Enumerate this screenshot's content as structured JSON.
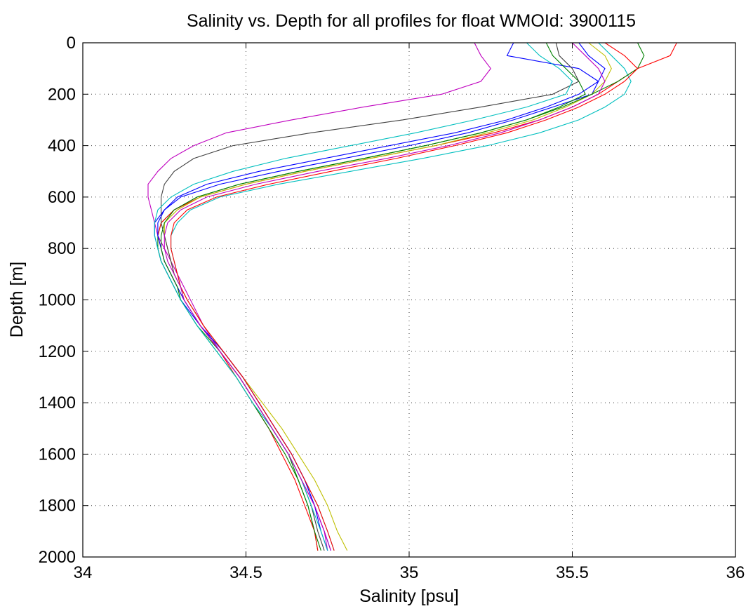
{
  "chart_data": {
    "type": "line",
    "title": "Salinity vs. Depth for all profiles for float WMOId: 3900115",
    "xlabel": "Salinity [psu]",
    "ylabel": "Depth [m]",
    "xlim": [
      34,
      36
    ],
    "ylim": [
      0,
      2000
    ],
    "y_reversed": true,
    "grid": true,
    "x_ticks": [
      "34",
      "34.5",
      "35",
      "35.5",
      "36"
    ],
    "y_ticks": [
      "0",
      "200",
      "400",
      "600",
      "800",
      "1000",
      "1200",
      "1400",
      "1600",
      "1800",
      "2000"
    ],
    "colors": [
      "#0000ff",
      "#008000",
      "#ff0000",
      "#00bfbf",
      "#bf00bf",
      "#bfbf00",
      "#404040"
    ],
    "profile_depths": [
      0,
      50,
      100,
      150,
      200,
      250,
      300,
      350,
      400,
      450,
      500,
      550,
      600,
      650,
      700,
      750,
      800,
      850,
      900,
      950,
      1000,
      1100,
      1200,
      1300,
      1400,
      1500,
      1600,
      1700,
      1800,
      1900,
      1975
    ],
    "series": [
      {
        "values": [
          35.32,
          35.3,
          35.52,
          35.58,
          35.56,
          35.44,
          35.32,
          35.18,
          35.0,
          34.8,
          34.6,
          34.42,
          34.3,
          34.25,
          34.22,
          34.22,
          34.23,
          34.24,
          34.26,
          34.28,
          34.3,
          34.36,
          34.43,
          34.49,
          34.54,
          34.59,
          34.64,
          34.68,
          34.71,
          34.74,
          34.76
        ]
      },
      {
        "values": [
          35.42,
          35.44,
          35.48,
          35.52,
          35.54,
          35.46,
          35.36,
          35.22,
          35.05,
          34.86,
          34.66,
          34.48,
          34.35,
          34.28,
          34.24,
          34.23,
          34.23,
          34.24,
          34.26,
          34.28,
          34.3,
          34.35,
          34.42,
          34.48,
          34.53,
          34.58,
          34.63,
          34.66,
          34.69,
          34.71,
          34.72
        ]
      },
      {
        "values": [
          35.82,
          35.8,
          35.7,
          35.64,
          35.58,
          35.5,
          35.4,
          35.26,
          35.08,
          34.88,
          34.68,
          34.5,
          34.36,
          34.28,
          34.24,
          34.23,
          34.24,
          34.25,
          34.27,
          34.29,
          34.31,
          34.36,
          34.42,
          34.47,
          34.52,
          34.57,
          34.61,
          34.65,
          34.68,
          34.71,
          34.72
        ]
      },
      {
        "values": [
          35.58,
          35.62,
          35.66,
          35.68,
          35.66,
          35.6,
          35.52,
          35.4,
          35.24,
          35.04,
          34.82,
          34.6,
          34.42,
          34.33,
          34.29,
          34.27,
          34.27,
          34.28,
          34.29,
          34.3,
          34.32,
          34.37,
          34.43,
          34.49,
          34.54,
          34.59,
          34.64,
          34.68,
          34.72,
          34.75,
          34.77
        ]
      },
      {
        "values": [
          35.2,
          35.22,
          35.25,
          35.22,
          35.1,
          34.86,
          34.64,
          34.44,
          34.34,
          34.27,
          34.23,
          34.2,
          34.2,
          34.21,
          34.22,
          34.23,
          34.25,
          34.27,
          34.29,
          34.31,
          34.33,
          34.37,
          34.42,
          34.48,
          34.53,
          34.58,
          34.63,
          34.67,
          34.71,
          34.74,
          34.75
        ]
      },
      {
        "values": [
          35.55,
          35.6,
          35.62,
          35.6,
          35.56,
          35.48,
          35.38,
          35.24,
          35.08,
          34.88,
          34.68,
          34.5,
          34.36,
          34.29,
          34.25,
          34.25,
          34.26,
          34.27,
          34.28,
          34.3,
          34.32,
          34.37,
          34.43,
          34.49,
          34.55,
          34.61,
          34.66,
          34.71,
          34.75,
          34.78,
          34.81
        ]
      },
      {
        "values": [
          35.45,
          35.46,
          35.5,
          35.52,
          35.44,
          35.22,
          34.98,
          34.7,
          34.46,
          34.34,
          34.28,
          34.25,
          34.24,
          34.24,
          34.24,
          34.25,
          34.26,
          34.27,
          34.28,
          34.3,
          34.31,
          34.36,
          34.42,
          34.48,
          34.53,
          34.58,
          34.63,
          34.67,
          34.7,
          34.72,
          34.74
        ]
      },
      {
        "values": [
          35.52,
          35.55,
          35.6,
          35.58,
          35.52,
          35.42,
          35.3,
          35.14,
          34.94,
          34.74,
          34.54,
          34.38,
          34.29,
          34.25,
          34.23,
          34.23,
          34.24,
          34.25,
          34.27,
          34.29,
          34.31,
          34.36,
          34.43,
          34.49,
          34.54,
          34.59,
          34.64,
          34.68,
          34.71,
          34.73,
          34.75
        ]
      },
      {
        "values": [
          35.7,
          35.72,
          35.7,
          35.64,
          35.56,
          35.47,
          35.36,
          35.22,
          35.05,
          34.86,
          34.66,
          34.48,
          34.35,
          34.28,
          34.25,
          34.24,
          34.24,
          34.25,
          34.27,
          34.29,
          34.3,
          34.35,
          34.41,
          34.47,
          34.52,
          34.57,
          34.62,
          34.66,
          34.69,
          34.71,
          34.73
        ]
      },
      {
        "values": [
          35.6,
          35.66,
          35.7,
          35.66,
          35.6,
          35.52,
          35.42,
          35.3,
          35.14,
          34.96,
          34.76,
          34.57,
          34.41,
          34.32,
          34.28,
          34.27,
          34.27,
          34.28,
          34.29,
          34.3,
          34.32,
          34.37,
          34.43,
          34.49,
          34.54,
          34.59,
          34.64,
          34.68,
          34.72,
          34.75,
          34.77
        ]
      },
      {
        "values": [
          35.36,
          35.4,
          35.46,
          35.5,
          35.48,
          35.36,
          35.2,
          35.02,
          34.82,
          34.62,
          34.46,
          34.34,
          34.27,
          34.23,
          34.22,
          34.22,
          34.23,
          34.24,
          34.26,
          34.28,
          34.3,
          34.35,
          34.41,
          34.47,
          34.52,
          34.58,
          34.63,
          34.67,
          34.7,
          34.73,
          34.75
        ]
      },
      {
        "values": [
          35.5,
          35.54,
          35.58,
          35.6,
          35.58,
          35.5,
          35.4,
          35.28,
          35.12,
          34.93,
          34.72,
          34.53,
          34.38,
          34.3,
          34.26,
          34.25,
          34.25,
          34.26,
          34.28,
          34.3,
          34.31,
          34.36,
          34.42,
          34.48,
          34.53,
          34.58,
          34.63,
          34.67,
          34.71,
          34.74,
          34.76
        ]
      }
    ]
  }
}
